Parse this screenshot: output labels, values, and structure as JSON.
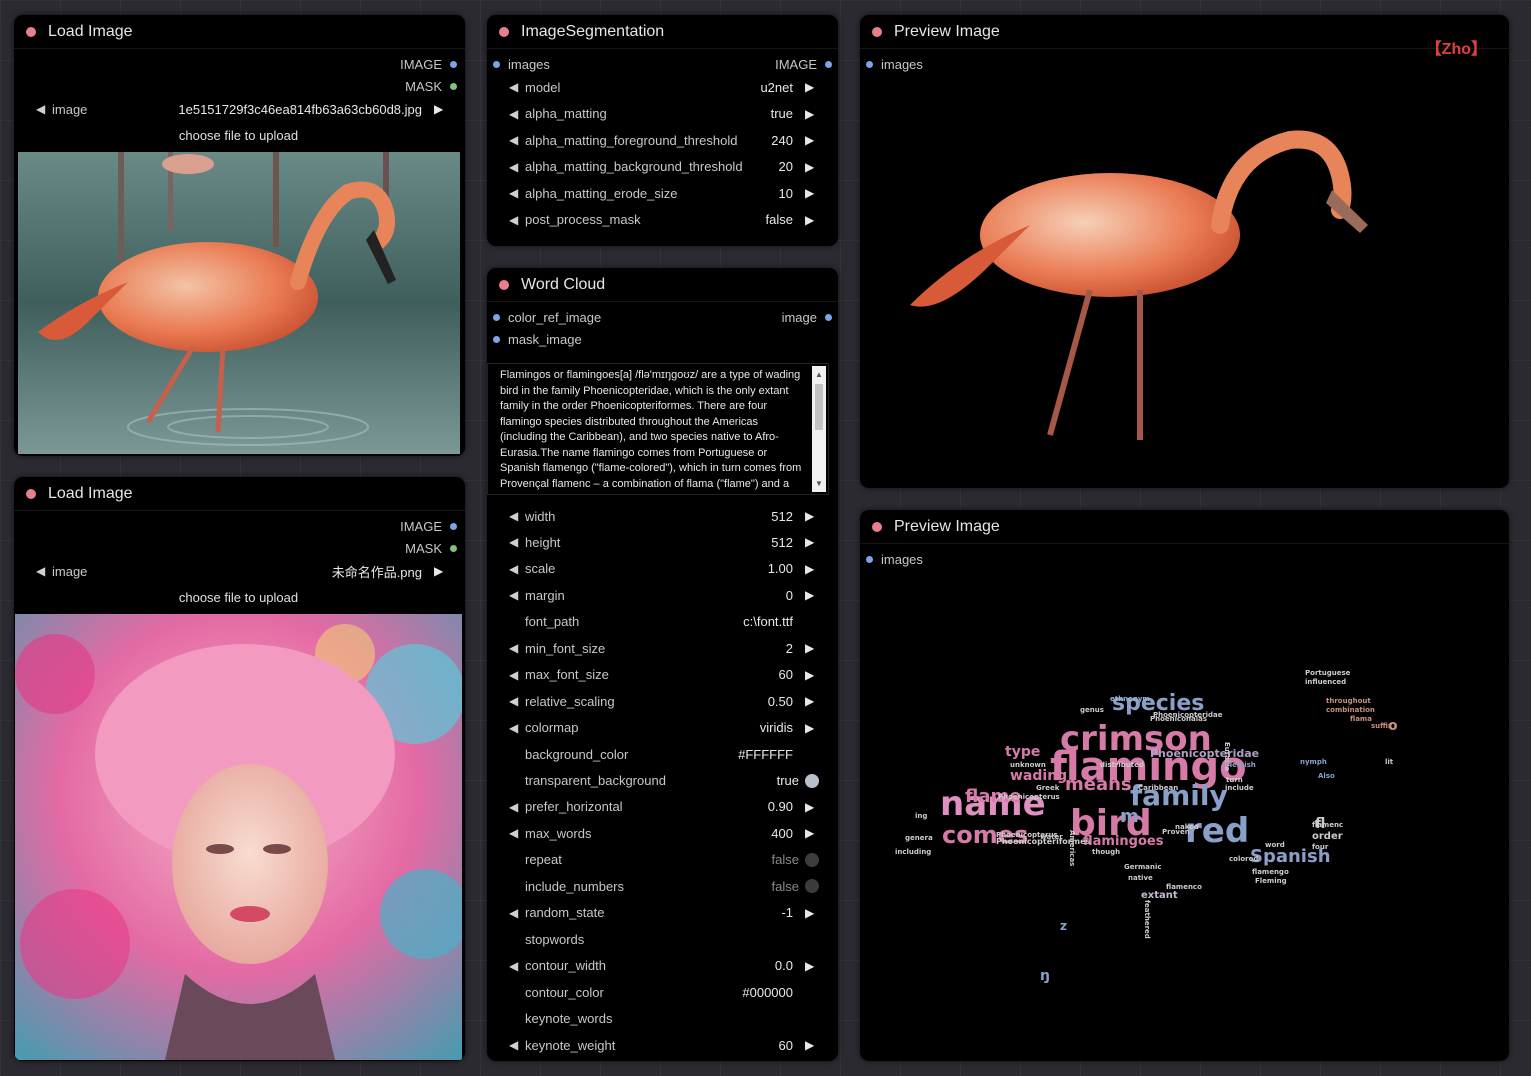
{
  "nodes": {
    "load_image_1": {
      "title": "Load Image",
      "outputs": [
        "IMAGE",
        "MASK"
      ],
      "widget_label": "image",
      "widget_value": "1e5151729f3c46ea814fb63a63cb60d8.jpg",
      "upload_label": "choose file to upload"
    },
    "load_image_2": {
      "title": "Load Image",
      "outputs": [
        "IMAGE",
        "MASK"
      ],
      "widget_label": "image",
      "widget_value": "未命名作品.png",
      "upload_label": "choose file to upload"
    },
    "segmentation": {
      "title": "ImageSegmentation",
      "input": "images",
      "output": "IMAGE",
      "widgets": [
        {
          "label": "model",
          "value": "u2net"
        },
        {
          "label": "alpha_matting",
          "value": "true"
        },
        {
          "label": "alpha_matting_foreground_threshold",
          "value": "240"
        },
        {
          "label": "alpha_matting_background_threshold",
          "value": "20"
        },
        {
          "label": "alpha_matting_erode_size",
          "value": "10"
        },
        {
          "label": "post_process_mask",
          "value": "false"
        }
      ]
    },
    "word_cloud": {
      "title": "Word Cloud",
      "inputs": [
        "color_ref_image",
        "mask_image"
      ],
      "output": "image",
      "text": "Flamingos or flamingoes[a] /flə'mɪŋgoʊz/ are a type of wading bird in the family Phoenicopteridae, which is the only extant family in the order Phoenicopteriformes. There are four flamingo species distributed throughout the Americas (including the Caribbean), and two species native to Afro-Eurasia.The name flamingo comes from Portuguese or Spanish flamengo (\"flame-colored\"), which in turn comes from Provençal flamenc – a combination of flama (\"flame\") and a Germanic-like suffix -ing. The word",
      "widgets": [
        {
          "label": "width",
          "value": "512",
          "kind": "number"
        },
        {
          "label": "height",
          "value": "512",
          "kind": "number"
        },
        {
          "label": "scale",
          "value": "1.00",
          "kind": "number"
        },
        {
          "label": "margin",
          "value": "0",
          "kind": "number"
        },
        {
          "label": "font_path",
          "value": "c:\\font.ttf",
          "kind": "text"
        },
        {
          "label": "min_font_size",
          "value": "2",
          "kind": "number"
        },
        {
          "label": "max_font_size",
          "value": "60",
          "kind": "number"
        },
        {
          "label": "relative_scaling",
          "value": "0.50",
          "kind": "number"
        },
        {
          "label": "colormap",
          "value": "viridis",
          "kind": "combo"
        },
        {
          "label": "background_color",
          "value": "#FFFFFF",
          "kind": "text"
        },
        {
          "label": "transparent_background",
          "value": "true",
          "kind": "toggle_on"
        },
        {
          "label": "prefer_horizontal",
          "value": "0.90",
          "kind": "number"
        },
        {
          "label": "max_words",
          "value": "400",
          "kind": "number"
        },
        {
          "label": "repeat",
          "value": "false",
          "kind": "toggle_off"
        },
        {
          "label": "include_numbers",
          "value": "false",
          "kind": "toggle_off"
        },
        {
          "label": "random_state",
          "value": "-1",
          "kind": "number"
        },
        {
          "label": "stopwords",
          "value": "",
          "kind": "text"
        },
        {
          "label": "contour_width",
          "value": "0.0",
          "kind": "number"
        },
        {
          "label": "contour_color",
          "value": "#000000",
          "kind": "text"
        },
        {
          "label": "keynote_words",
          "value": "",
          "kind": "text"
        },
        {
          "label": "keynote_weight",
          "value": "60",
          "kind": "number"
        }
      ]
    },
    "preview_1": {
      "title": "Preview Image",
      "input": "images",
      "brand": "【Zho】"
    },
    "preview_2": {
      "title": "Preview Image",
      "input": "images"
    }
  },
  "colors": {
    "title_dot": "#e8808c",
    "image_slot": "#7aa6e8",
    "mask_slot": "#7fc37f",
    "brand": "#e04040"
  },
  "word_cloud_words": [
    "crimson",
    "flamingo",
    "species",
    "family",
    "name",
    "bird",
    "comes",
    "red",
    "Spanish",
    "flame",
    "means",
    "wading",
    "type",
    "flamingoes",
    "Phoenicopteridae",
    "Phoenicopteriformes",
    "extant",
    "Portuguese",
    "influenced",
    "throughout",
    "combination",
    "flama",
    "order",
    "four",
    "flamenc",
    "flamengo",
    "Fleming",
    "native",
    "Germanic",
    "colored",
    "word",
    "genus",
    "ethnonym",
    "Greek",
    "Caribbean",
    "Eurasia",
    "Flemish",
    "include",
    "unknown",
    "distributed",
    "Americas",
    "feathered",
    "Phoenicopterus",
    "nymph",
    "suffix",
    "Proven",
    "naked",
    "water",
    "including",
    "Phoenicopterus",
    "though",
    "ing",
    "genera",
    "flamenco",
    "Phoenicopteridae",
    "lit",
    "Phoeniconaias",
    "z",
    "m",
    "fl",
    "ŋ",
    "o",
    "turn",
    "Also"
  ]
}
